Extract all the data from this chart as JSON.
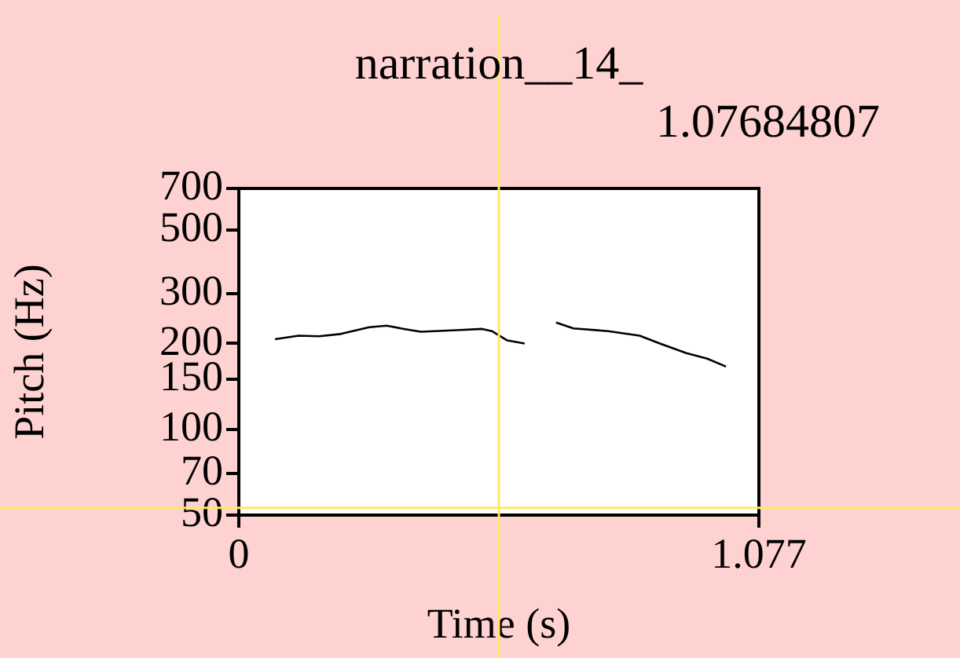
{
  "chart_data": {
    "type": "line",
    "title": "narration__14_",
    "subtitle": "1.07684807",
    "xlabel": "Time (s)",
    "ylabel": "Pitch (Hz)",
    "x": [
      0.075,
      0.124,
      0.166,
      0.211,
      0.27,
      0.306,
      0.342,
      0.377,
      0.459,
      0.504,
      0.524,
      0.556,
      0.592,
      0.62,
      0.657,
      0.693,
      0.765,
      0.83,
      0.872,
      0.927,
      0.97,
      1.009
    ],
    "series": [
      {
        "color": "#000000",
        "values": [
          207,
          213,
          212,
          216,
          228,
          231,
          225,
          220,
          223,
          225,
          221,
          205,
          200,
          null,
          237,
          226,
          221,
          213,
          200,
          185,
          177,
          166
        ]
      }
    ],
    "xlim": [
      0,
      1.077
    ],
    "xticks": [
      0,
      1.077
    ],
    "ylim": [
      50,
      700
    ],
    "yticks": [
      50,
      70,
      100,
      150,
      200,
      300,
      500,
      700
    ],
    "ref_lines": [
      {
        "axis": "x",
        "value": 0.5385,
        "color": "#ffe866"
      },
      {
        "axis": "y",
        "value": 53,
        "color": "#ffe866"
      }
    ],
    "log": "y",
    "grid": false,
    "legend": false,
    "marker": "none",
    "line_style": "solid"
  }
}
